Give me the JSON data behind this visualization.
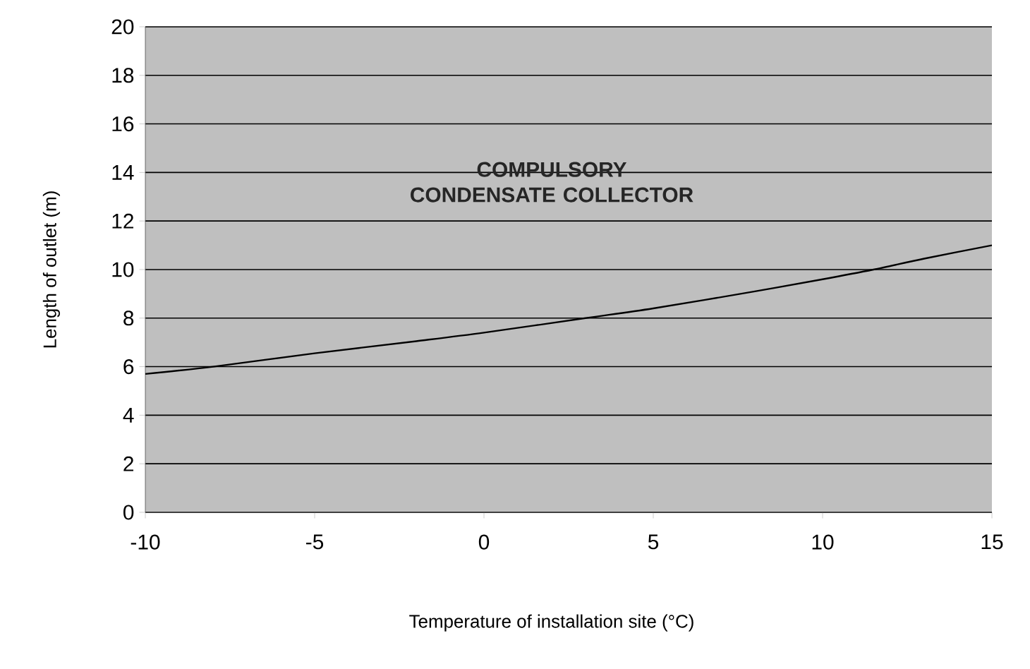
{
  "chart_data": {
    "type": "line",
    "xlabel": "Temperature of installation site (°C)",
    "ylabel": "Length of outlet (m)",
    "annotations": [
      "COMPULSORY CONDENSATE COLLECTOR"
    ],
    "x": [
      -10,
      -8,
      -5,
      -2,
      0,
      3,
      5,
      8,
      10,
      11.5,
      13,
      15
    ],
    "series": [
      {
        "color": "#000000",
        "values": [
          5.7,
          6.0,
          6.55,
          7.05,
          7.4,
          8.0,
          8.4,
          9.1,
          9.6,
          10.0,
          10.45,
          11.0
        ]
      }
    ],
    "xlim": [
      -10,
      15
    ],
    "xticks": [
      -10,
      -5,
      0,
      5,
      10,
      15
    ],
    "ylim": [
      0,
      20
    ],
    "yticks": [
      0,
      2,
      4,
      6,
      8,
      10,
      12,
      14,
      16,
      18,
      20
    ],
    "grid": "y",
    "marker": "none",
    "line_style": "solid"
  }
}
